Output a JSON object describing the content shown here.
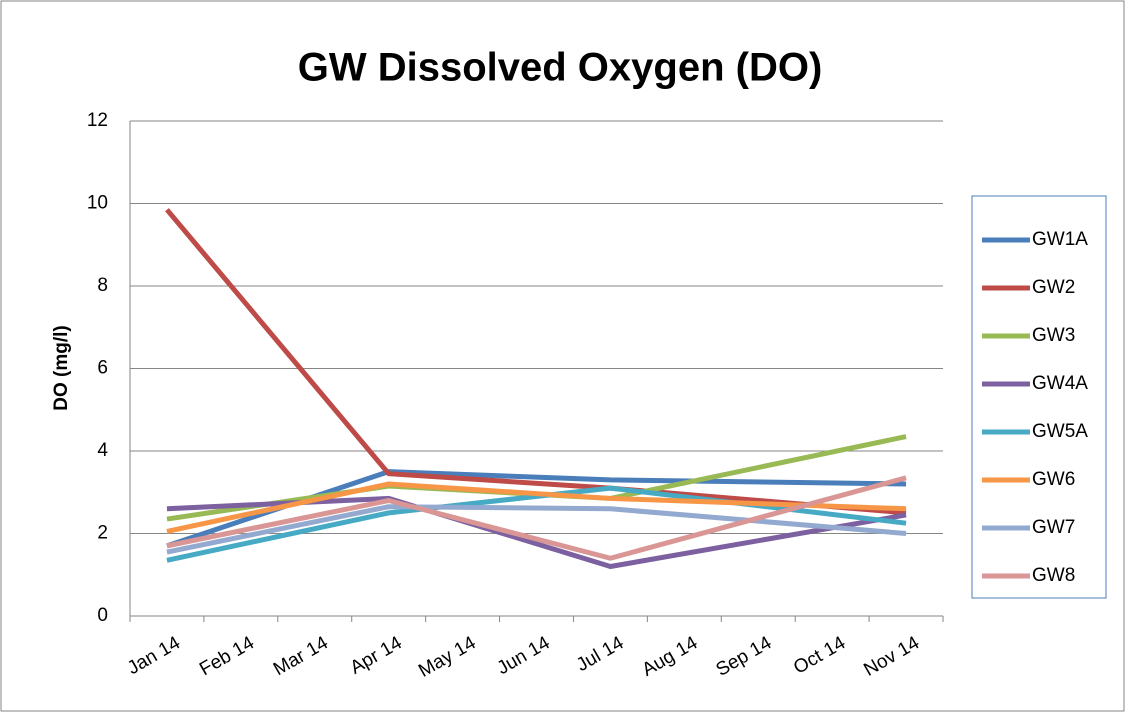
{
  "chart_data": {
    "type": "line",
    "title": "GW Dissolved Oxygen (DO)",
    "y_label": "DO (mg/l)",
    "categories": [
      "Jan 14",
      "Feb 14",
      "Mar 14",
      "Apr 14",
      "May 14",
      "Jun 14",
      "Jul 14",
      "Aug 14",
      "Sep 14",
      "Oct 14",
      "Nov 14"
    ],
    "x": [
      "Jan 14",
      "Apr 14",
      "Jul 14",
      "Nov 14"
    ],
    "series": [
      {
        "name": "GW1A",
        "color": "#4a7ebb",
        "values": [
          1.7,
          3.5,
          3.3,
          3.2
        ]
      },
      {
        "name": "GW2",
        "color": "#be4b48",
        "values": [
          9.85,
          3.45,
          3.1,
          2.5
        ]
      },
      {
        "name": "GW3",
        "color": "#98b954",
        "values": [
          2.35,
          3.15,
          2.85,
          4.35
        ]
      },
      {
        "name": "GW4A",
        "color": "#7d60a0",
        "values": [
          2.6,
          2.85,
          1.2,
          2.45
        ]
      },
      {
        "name": "GW5A",
        "color": "#46aac5",
        "values": [
          1.35,
          2.5,
          3.1,
          2.25
        ]
      },
      {
        "name": "GW6",
        "color": "#f79646",
        "values": [
          2.05,
          3.2,
          2.85,
          2.6
        ]
      },
      {
        "name": "GW7",
        "color": "#93a9cf",
        "values": [
          1.55,
          2.65,
          2.6,
          2.0
        ]
      },
      {
        "name": "GW8",
        "color": "#d99694",
        "values": [
          1.7,
          2.8,
          1.4,
          3.35
        ]
      }
    ],
    "ylim": [
      0,
      12
    ],
    "yticks": [
      0,
      2,
      4,
      6,
      8,
      10,
      12
    ],
    "grid": true,
    "legend": "right"
  }
}
